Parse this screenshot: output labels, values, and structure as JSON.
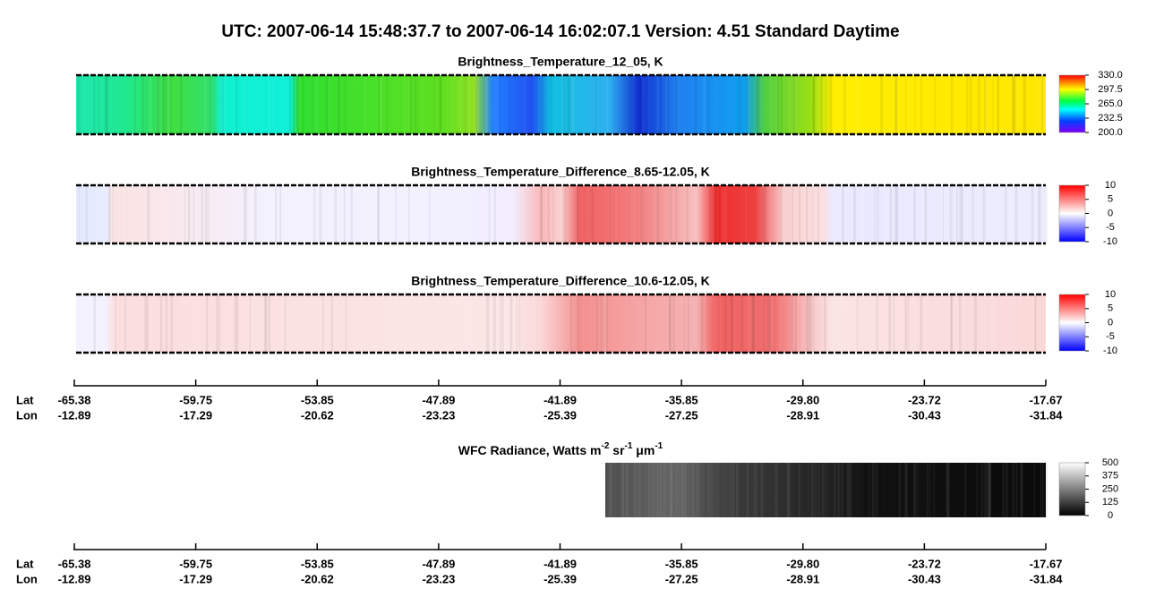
{
  "title": "UTC:  2007-06-14   15:48:37.7  to  2007-06-14   16:02:07.1    Version: 4.51  Standard Daytime",
  "chart_data": [
    {
      "type": "heatmap",
      "title": "Brightness_Temperature_12_05, K",
      "colormap": "rainbow",
      "clim": [
        200,
        330
      ],
      "cticks": [
        {
          "value": 200,
          "label": "200.0"
        },
        {
          "value": 232.5,
          "label": "232.5"
        },
        {
          "value": 265,
          "label": "265.0"
        },
        {
          "value": 297.5,
          "label": "297.5"
        },
        {
          "value": 330,
          "label": "330.0"
        }
      ]
    },
    {
      "type": "heatmap",
      "title": "Brightness_Temperature_Difference_8.65-12.05, K",
      "colormap": "bwr",
      "clim": [
        -10,
        10
      ],
      "cticks": [
        -10,
        -5,
        0,
        5,
        10
      ]
    },
    {
      "type": "heatmap",
      "title": "Brightness_Temperature_Difference_10.6-12.05, K",
      "colormap": "bwr",
      "clim": [
        -10,
        10
      ],
      "cticks": [
        -10,
        -5,
        0,
        5,
        10
      ]
    },
    {
      "type": "axis",
      "row_labels": [
        "Lat",
        "Lon"
      ],
      "lat": [
        "-65.38",
        "-59.75",
        "-53.85",
        "-47.89",
        "-41.89",
        "-35.85",
        "-29.80",
        "-23.72",
        "-17.67"
      ],
      "lon": [
        "-12.89",
        "-17.29",
        "-20.62",
        "-23.23",
        "-25.39",
        "-27.25",
        "-28.91",
        "-30.43",
        "-31.84"
      ]
    },
    {
      "type": "heatmap",
      "title": [
        "WFC Radiance, Watts m",
        "-2",
        " sr",
        "-1",
        " μm",
        "-1"
      ],
      "colormap": "gray",
      "clim": [
        0,
        500
      ],
      "cticks": [
        0,
        125,
        250,
        375,
        500
      ]
    },
    {
      "type": "axis",
      "row_labels": [
        "Lat",
        "Lon"
      ],
      "lat": [
        "-65.38",
        "-59.75",
        "-53.85",
        "-47.89",
        "-41.89",
        "-35.85",
        "-29.80",
        "-23.72",
        "-17.67"
      ],
      "lon": [
        "-12.89",
        "-17.29",
        "-20.62",
        "-23.23",
        "-25.39",
        "-27.25",
        "-28.91",
        "-30.43",
        "-31.84"
      ]
    }
  ]
}
